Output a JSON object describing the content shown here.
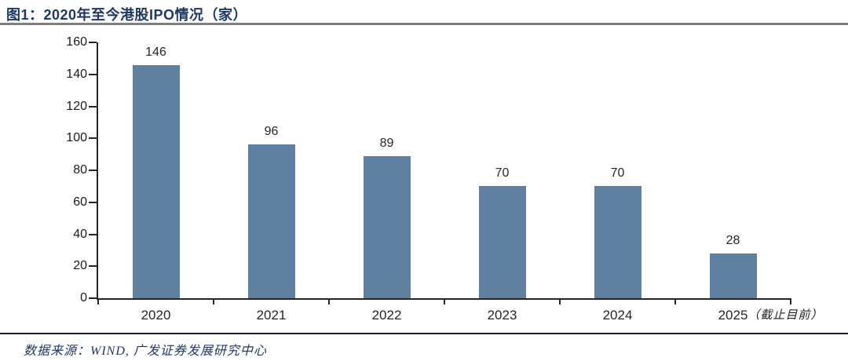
{
  "chart_data": {
    "type": "bar",
    "title": "图1：2020年至今港股IPO情况（家）",
    "categories": [
      "2020",
      "2021",
      "2022",
      "2023",
      "2024",
      "2025（截止目前）"
    ],
    "values": [
      146,
      96,
      89,
      70,
      70,
      28
    ],
    "value_labels": [
      "146",
      "96",
      "89",
      "70",
      "70",
      "28"
    ],
    "ylabel": "",
    "xlabel": "",
    "ylim": [
      0,
      160
    ],
    "y_step": 20,
    "grid": false,
    "legend": false,
    "bar_color": "#5F80A1"
  },
  "footer": {
    "source": "数据来源：WIND, 广发证券发展研究中心"
  }
}
